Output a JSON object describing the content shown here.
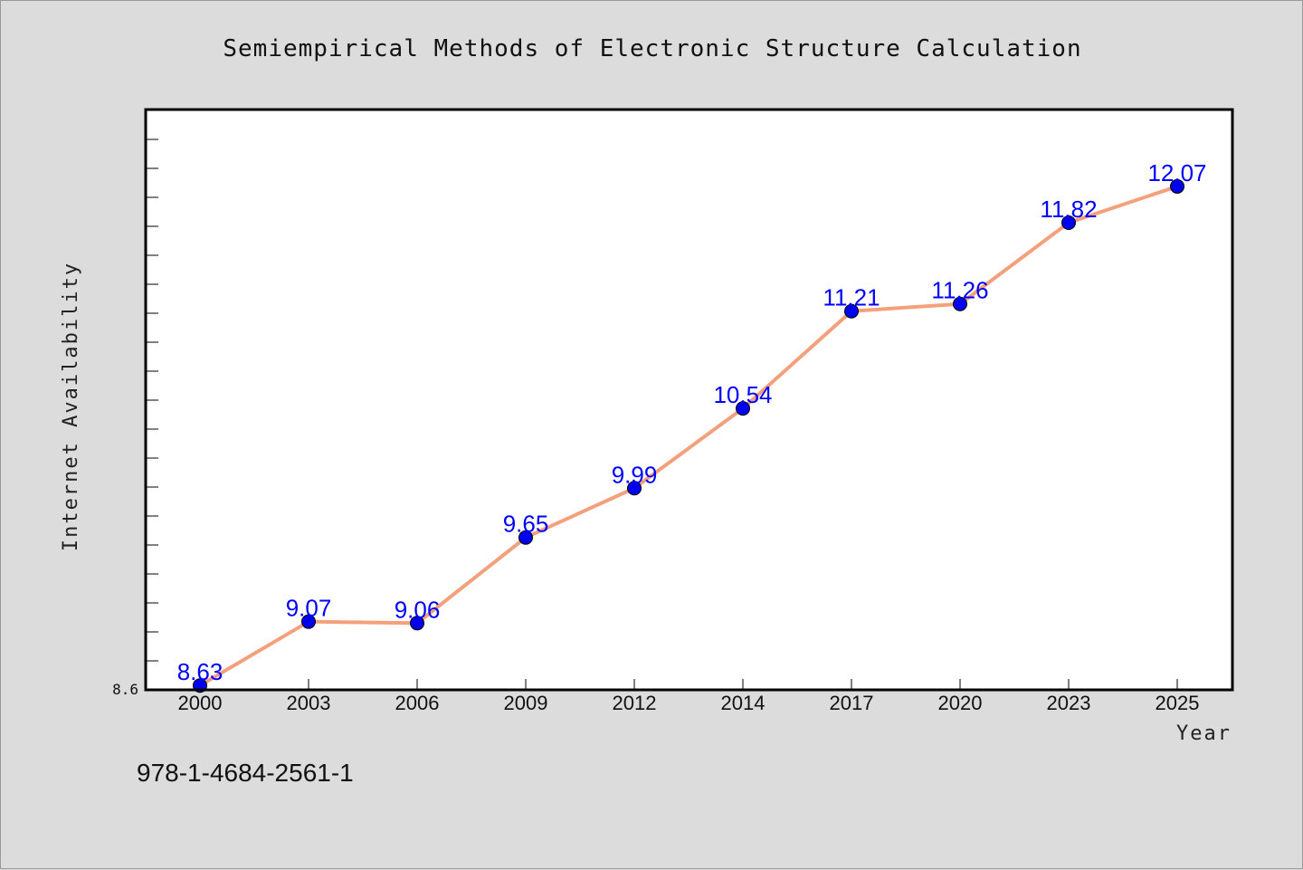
{
  "chart_data": {
    "type": "line",
    "title": "Semiempirical Methods of Electronic Structure Calculation",
    "xlabel": "Year",
    "ylabel": "Internet Availability",
    "categories": [
      "2000",
      "2003",
      "2006",
      "2009",
      "2012",
      "2014",
      "2017",
      "2020",
      "2023",
      "2025"
    ],
    "series": [
      {
        "values": [
          8.63,
          9.07,
          9.06,
          9.65,
          9.99,
          10.54,
          11.21,
          11.26,
          11.82,
          12.07
        ],
        "labels": [
          "8.63",
          "9.07",
          "9.06",
          "9.65",
          "9.99",
          "10.54",
          "11.21",
          "11.26",
          "11.82",
          "12.07"
        ],
        "line_color": "#f4a07c",
        "marker_color": "#0000ee",
        "label_color": "#0000ff"
      }
    ],
    "ylim": [
      8.6,
      12.6
    ],
    "y_tick_labels": [
      "8.6"
    ],
    "grid": false,
    "legend": "none"
  },
  "footer": {
    "code": "978-1-4684-2561-1"
  }
}
